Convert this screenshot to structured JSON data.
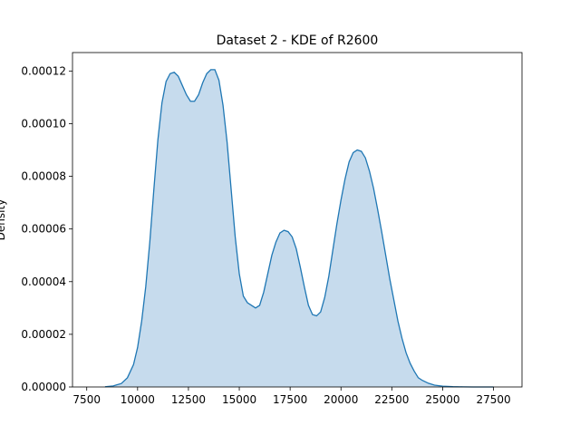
{
  "chart_data": {
    "type": "area",
    "title": "Dataset 2 - KDE of R2600",
    "xlabel": "",
    "ylabel": "Density",
    "xlim": [
      6800,
      28900
    ],
    "ylim": [
      0,
      0.000127
    ],
    "x_ticks": [
      7500,
      10000,
      12500,
      15000,
      17500,
      20000,
      22500,
      25000,
      27500
    ],
    "x_tick_labels": [
      "7500",
      "10000",
      "12500",
      "15000",
      "17500",
      "20000",
      "22500",
      "25000",
      "27500"
    ],
    "y_ticks": [
      0,
      2e-05,
      4e-05,
      6e-05,
      8e-05,
      0.0001,
      0.00012
    ],
    "y_tick_labels": [
      "0.00000",
      "0.00002",
      "0.00004",
      "0.00006",
      "0.00008",
      "0.00010",
      "0.00012"
    ],
    "grid": false,
    "legend": "none",
    "colors": {
      "line": "#1f77b4",
      "fill": "#c6dbed"
    },
    "series": [
      {
        "x": [
          8400,
          8800,
          9200,
          9500,
          9800,
          10000,
          10200,
          10400,
          10600,
          10800,
          11000,
          11200,
          11400,
          11600,
          11800,
          12000,
          12200,
          12400,
          12600,
          12800,
          13000,
          13200,
          13400,
          13600,
          13800,
          14000,
          14200,
          14400,
          14600,
          14800,
          15000,
          15200,
          15400,
          15600,
          15800,
          16000,
          16200,
          16400,
          16600,
          16800,
          17000,
          17200,
          17400,
          17600,
          17800,
          18000,
          18200,
          18400,
          18600,
          18800,
          19000,
          19200,
          19400,
          19600,
          19800,
          20000,
          20200,
          20400,
          20600,
          20800,
          21000,
          21200,
          21400,
          21600,
          21800,
          22000,
          22200,
          22400,
          22600,
          22800,
          23000,
          23200,
          23400,
          23600,
          23800,
          24000,
          24300,
          24600,
          25000,
          25500,
          26000,
          26500,
          27000,
          27500
        ],
        "y": [
          1e-07,
          4e-07,
          1.3e-06,
          3.5e-06,
          8.5e-06,
          1.5e-05,
          2.5e-05,
          3.8e-05,
          5.5e-05,
          7.5e-05,
          9.4e-05,
          0.000108,
          0.000116,
          0.000119,
          0.0001195,
          0.000118,
          0.0001145,
          0.000111,
          0.0001085,
          0.0001085,
          0.000111,
          0.0001155,
          0.000119,
          0.0001205,
          0.0001205,
          0.0001165,
          0.000107,
          9.3e-05,
          7.5e-05,
          5.7e-05,
          4.3e-05,
          3.45e-05,
          3.2e-05,
          3.1e-05,
          3e-05,
          3.1e-05,
          3.6e-05,
          4.3e-05,
          5e-05,
          5.5e-05,
          5.85e-05,
          5.95e-05,
          5.9e-05,
          5.7e-05,
          5.25e-05,
          4.55e-05,
          3.8e-05,
          3.1e-05,
          2.75e-05,
          2.7e-05,
          2.85e-05,
          3.4e-05,
          4.2e-05,
          5.2e-05,
          6.2e-05,
          7.1e-05,
          7.9e-05,
          8.55e-05,
          8.9e-05,
          9e-05,
          8.95e-05,
          8.7e-05,
          8.2e-05,
          7.55e-05,
          6.75e-05,
          5.9e-05,
          5e-05,
          4.1e-05,
          3.3e-05,
          2.5e-05,
          1.85e-05,
          1.3e-05,
          9e-06,
          6e-06,
          3.5e-06,
          2.5e-06,
          1.4e-06,
          7e-07,
          3e-07,
          1e-07,
          4e-08,
          1e-08,
          0.0,
          0.0
        ]
      }
    ]
  }
}
